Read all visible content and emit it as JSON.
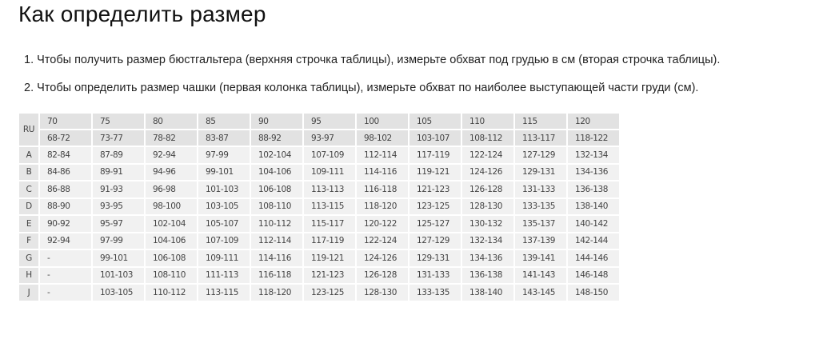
{
  "title": "Как определить размер",
  "steps": [
    "1. Чтобы получить размер бюстгальтера (верхняя строчка таблицы), измерьте обхват под грудью в см (вторая строчка таблицы).",
    "2. Чтобы определить размер чашки (первая колонка таблицы), измерьте обхват по наиболее выступающей части груди (см)."
  ],
  "table": {
    "corner": "RU",
    "sizes": [
      "70",
      "75",
      "80",
      "85",
      "90",
      "95",
      "100",
      "105",
      "110",
      "115",
      "120"
    ],
    "underbust": [
      "68-72",
      "73-77",
      "78-82",
      "83-87",
      "88-92",
      "93-97",
      "98-102",
      "103-107",
      "108-112",
      "113-117",
      "118-122"
    ],
    "rows": [
      {
        "cup": "A",
        "values": [
          "82-84",
          "87-89",
          "92-94",
          "97-99",
          "102-104",
          "107-109",
          "112-114",
          "117-119",
          "122-124",
          "127-129",
          "132-134"
        ]
      },
      {
        "cup": "B",
        "values": [
          "84-86",
          "89-91",
          "94-96",
          "99-101",
          "104-106",
          "109-111",
          "114-116",
          "119-121",
          "124-126",
          "129-131",
          "134-136"
        ]
      },
      {
        "cup": "C",
        "values": [
          "86-88",
          "91-93",
          "96-98",
          "101-103",
          "106-108",
          "113-113",
          "116-118",
          "121-123",
          "126-128",
          "131-133",
          "136-138"
        ]
      },
      {
        "cup": "D",
        "values": [
          "88-90",
          "93-95",
          "98-100",
          "103-105",
          "108-110",
          "113-115",
          "118-120",
          "123-125",
          "128-130",
          "133-135",
          "138-140"
        ]
      },
      {
        "cup": "E",
        "values": [
          "90-92",
          "95-97",
          "102-104",
          "105-107",
          "110-112",
          "115-117",
          "120-122",
          "125-127",
          "130-132",
          "135-137",
          "140-142"
        ]
      },
      {
        "cup": "F",
        "values": [
          "92-94",
          "97-99",
          "104-106",
          "107-109",
          "112-114",
          "117-119",
          "122-124",
          "127-129",
          "132-134",
          "137-139",
          "142-144"
        ]
      },
      {
        "cup": "G",
        "values": [
          "-",
          "99-101",
          "106-108",
          "109-111",
          "114-116",
          "119-121",
          "124-126",
          "129-131",
          "134-136",
          "139-141",
          "144-146"
        ]
      },
      {
        "cup": "H",
        "values": [
          "-",
          "101-103",
          "108-110",
          "111-113",
          "116-118",
          "121-123",
          "126-128",
          "131-133",
          "136-138",
          "141-143",
          "146-148"
        ]
      },
      {
        "cup": "J",
        "values": [
          "-",
          "103-105",
          "110-112",
          "113-115",
          "118-120",
          "123-125",
          "128-130",
          "133-135",
          "138-140",
          "143-145",
          "148-150"
        ]
      }
    ]
  }
}
